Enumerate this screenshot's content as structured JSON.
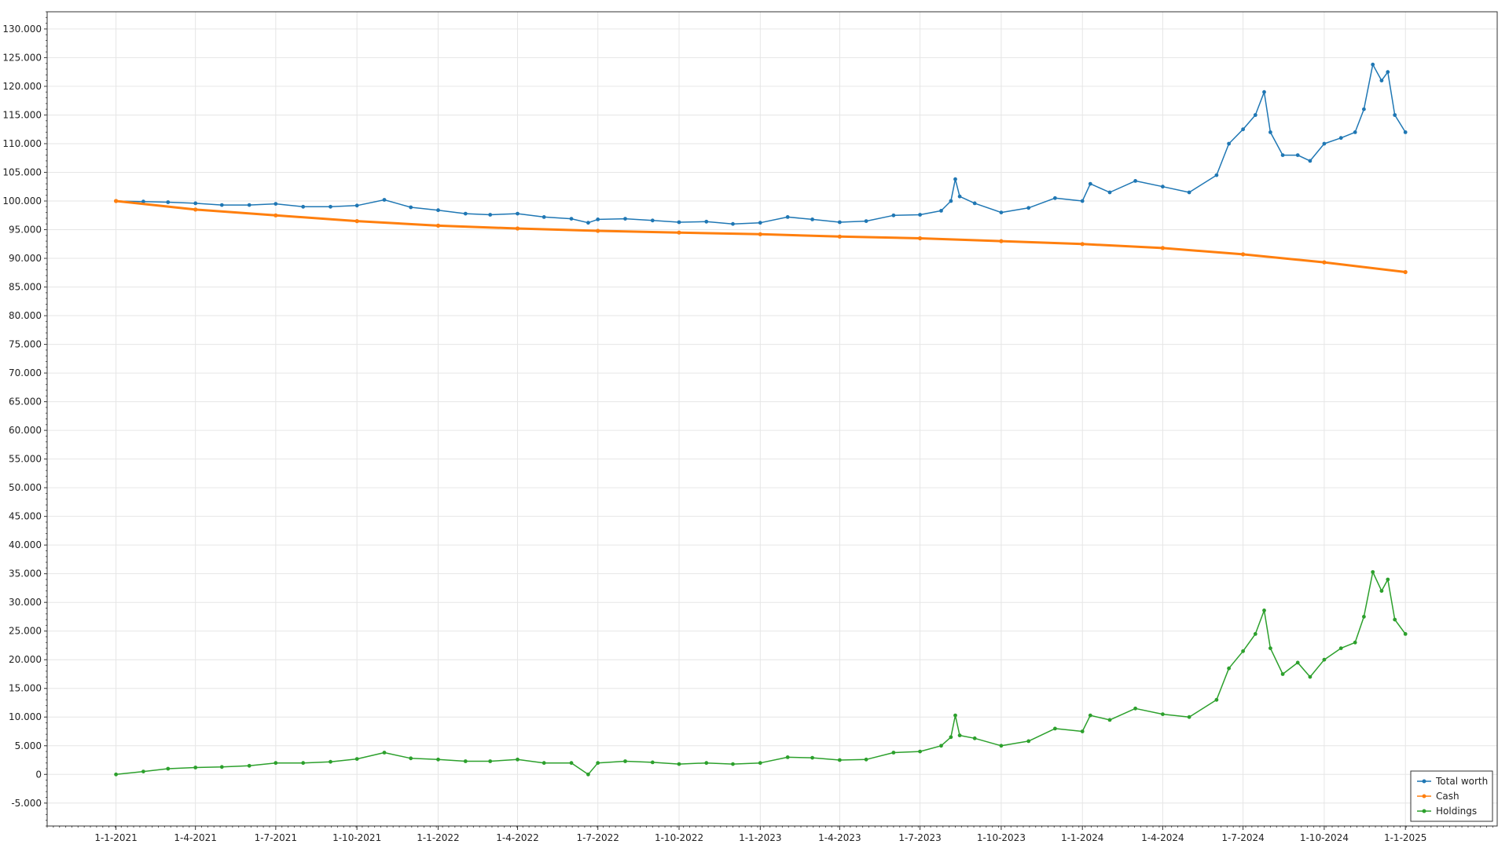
{
  "chart_data": {
    "type": "line",
    "title": "",
    "xlabel": "",
    "ylabel": "",
    "grid": true,
    "legend_position": "bottom-right",
    "x_axis": {
      "type": "date",
      "min": "2020-10-15",
      "max": "2025-04-15",
      "ticks": [
        {
          "date": "2021-01-01",
          "label": "1-1-2021"
        },
        {
          "date": "2021-04-01",
          "label": "1-4-2021"
        },
        {
          "date": "2021-07-01",
          "label": "1-7-2021"
        },
        {
          "date": "2021-10-01",
          "label": "1-10-2021"
        },
        {
          "date": "2022-01-01",
          "label": "1-1-2022"
        },
        {
          "date": "2022-04-01",
          "label": "1-4-2022"
        },
        {
          "date": "2022-07-01",
          "label": "1-7-2022"
        },
        {
          "date": "2022-10-01",
          "label": "1-10-2022"
        },
        {
          "date": "2023-01-01",
          "label": "1-1-2023"
        },
        {
          "date": "2023-04-01",
          "label": "1-4-2023"
        },
        {
          "date": "2023-07-01",
          "label": "1-7-2023"
        },
        {
          "date": "2023-10-01",
          "label": "1-10-2023"
        },
        {
          "date": "2024-01-01",
          "label": "1-1-2024"
        },
        {
          "date": "2024-04-01",
          "label": "1-4-2024"
        },
        {
          "date": "2024-07-01",
          "label": "1-7-2024"
        },
        {
          "date": "2024-10-01",
          "label": "1-10-2024"
        },
        {
          "date": "2025-01-01",
          "label": "1-1-2025"
        }
      ]
    },
    "y_axis": {
      "min": -9000,
      "max": 133000,
      "ticks": [
        {
          "value": -5000,
          "label": "-5.000"
        },
        {
          "value": 0,
          "label": "0"
        },
        {
          "value": 5000,
          "label": "5.000"
        },
        {
          "value": 10000,
          "label": "10.000"
        },
        {
          "value": 15000,
          "label": "15.000"
        },
        {
          "value": 20000,
          "label": "20.000"
        },
        {
          "value": 25000,
          "label": "25.000"
        },
        {
          "value": 30000,
          "label": "30.000"
        },
        {
          "value": 35000,
          "label": "35.000"
        },
        {
          "value": 40000,
          "label": "40.000"
        },
        {
          "value": 45000,
          "label": "45.000"
        },
        {
          "value": 50000,
          "label": "50.000"
        },
        {
          "value": 55000,
          "label": "55.000"
        },
        {
          "value": 60000,
          "label": "60.000"
        },
        {
          "value": 65000,
          "label": "65.000"
        },
        {
          "value": 70000,
          "label": "70.000"
        },
        {
          "value": 75000,
          "label": "75.000"
        },
        {
          "value": 80000,
          "label": "80.000"
        },
        {
          "value": 85000,
          "label": "85.000"
        },
        {
          "value": 90000,
          "label": "90.000"
        },
        {
          "value": 95000,
          "label": "95.000"
        },
        {
          "value": 100000,
          "label": "100.000"
        },
        {
          "value": 105000,
          "label": "105.000"
        },
        {
          "value": 110000,
          "label": "110.000"
        },
        {
          "value": 115000,
          "label": "115.000"
        },
        {
          "value": 120000,
          "label": "120.000"
        },
        {
          "value": 125000,
          "label": "125.000"
        },
        {
          "value": 130000,
          "label": "130.000"
        }
      ]
    },
    "series": [
      {
        "name": "Total worth",
        "color": "#1f77b4",
        "points": [
          [
            "2021-01-01",
            100000
          ],
          [
            "2021-02-01",
            99900
          ],
          [
            "2021-03-01",
            99800
          ],
          [
            "2021-04-01",
            99600
          ],
          [
            "2021-05-01",
            99300
          ],
          [
            "2021-06-01",
            99300
          ],
          [
            "2021-07-01",
            99500
          ],
          [
            "2021-08-01",
            99000
          ],
          [
            "2021-09-01",
            99000
          ],
          [
            "2021-10-01",
            99200
          ],
          [
            "2021-11-01",
            100200
          ],
          [
            "2021-12-01",
            98900
          ],
          [
            "2022-01-01",
            98400
          ],
          [
            "2022-02-01",
            97800
          ],
          [
            "2022-03-01",
            97600
          ],
          [
            "2022-04-01",
            97800
          ],
          [
            "2022-05-01",
            97200
          ],
          [
            "2022-06-01",
            96900
          ],
          [
            "2022-06-20",
            96200
          ],
          [
            "2022-07-01",
            96800
          ],
          [
            "2022-08-01",
            96900
          ],
          [
            "2022-09-01",
            96600
          ],
          [
            "2022-10-01",
            96300
          ],
          [
            "2022-11-01",
            96400
          ],
          [
            "2022-12-01",
            96000
          ],
          [
            "2023-01-01",
            96200
          ],
          [
            "2023-02-01",
            97200
          ],
          [
            "2023-03-01",
            96800
          ],
          [
            "2023-04-01",
            96300
          ],
          [
            "2023-05-01",
            96500
          ],
          [
            "2023-06-01",
            97500
          ],
          [
            "2023-07-01",
            97600
          ],
          [
            "2023-07-25",
            98300
          ],
          [
            "2023-08-05",
            100000
          ],
          [
            "2023-08-10",
            103800
          ],
          [
            "2023-08-15",
            100800
          ],
          [
            "2023-09-01",
            99600
          ],
          [
            "2023-10-01",
            98000
          ],
          [
            "2023-11-01",
            98800
          ],
          [
            "2023-12-01",
            100500
          ],
          [
            "2024-01-01",
            100000
          ],
          [
            "2024-01-10",
            103000
          ],
          [
            "2024-02-01",
            101500
          ],
          [
            "2024-03-01",
            103500
          ],
          [
            "2024-04-01",
            102500
          ],
          [
            "2024-05-01",
            101500
          ],
          [
            "2024-06-01",
            104500
          ],
          [
            "2024-06-15",
            110000
          ],
          [
            "2024-07-01",
            112500
          ],
          [
            "2024-07-15",
            115000
          ],
          [
            "2024-07-25",
            119000
          ],
          [
            "2024-08-01",
            112000
          ],
          [
            "2024-08-15",
            108000
          ],
          [
            "2024-09-01",
            108000
          ],
          [
            "2024-09-15",
            107000
          ],
          [
            "2024-10-01",
            110000
          ],
          [
            "2024-10-20",
            111000
          ],
          [
            "2024-11-05",
            112000
          ],
          [
            "2024-11-15",
            116000
          ],
          [
            "2024-11-25",
            123800
          ],
          [
            "2024-12-05",
            121000
          ],
          [
            "2024-12-12",
            122500
          ],
          [
            "2024-12-20",
            115000
          ],
          [
            "2025-01-01",
            112000
          ]
        ]
      },
      {
        "name": "Cash",
        "color": "#ff7f0e",
        "points": [
          [
            "2021-01-01",
            100000
          ],
          [
            "2021-04-01",
            98500
          ],
          [
            "2021-07-01",
            97500
          ],
          [
            "2021-10-01",
            96500
          ],
          [
            "2022-01-01",
            95700
          ],
          [
            "2022-04-01",
            95200
          ],
          [
            "2022-07-01",
            94800
          ],
          [
            "2022-10-01",
            94500
          ],
          [
            "2023-01-01",
            94200
          ],
          [
            "2023-04-01",
            93800
          ],
          [
            "2023-07-01",
            93500
          ],
          [
            "2023-10-01",
            93000
          ],
          [
            "2024-01-01",
            92500
          ],
          [
            "2024-04-01",
            91800
          ],
          [
            "2024-07-01",
            90700
          ],
          [
            "2024-10-01",
            89300
          ],
          [
            "2025-01-01",
            87600
          ]
        ]
      },
      {
        "name": "Holdings",
        "color": "#2ca02c",
        "points": [
          [
            "2021-01-01",
            0
          ],
          [
            "2021-02-01",
            500
          ],
          [
            "2021-03-01",
            1000
          ],
          [
            "2021-04-01",
            1200
          ],
          [
            "2021-05-01",
            1300
          ],
          [
            "2021-06-01",
            1500
          ],
          [
            "2021-07-01",
            2000
          ],
          [
            "2021-08-01",
            2000
          ],
          [
            "2021-09-01",
            2200
          ],
          [
            "2021-10-01",
            2700
          ],
          [
            "2021-11-01",
            3800
          ],
          [
            "2021-12-01",
            2800
          ],
          [
            "2022-01-01",
            2600
          ],
          [
            "2022-02-01",
            2300
          ],
          [
            "2022-03-01",
            2300
          ],
          [
            "2022-04-01",
            2600
          ],
          [
            "2022-05-01",
            2000
          ],
          [
            "2022-06-01",
            2000
          ],
          [
            "2022-06-20",
            0
          ],
          [
            "2022-07-01",
            2000
          ],
          [
            "2022-08-01",
            2300
          ],
          [
            "2022-09-01",
            2100
          ],
          [
            "2022-10-01",
            1800
          ],
          [
            "2022-11-01",
            2000
          ],
          [
            "2022-12-01",
            1800
          ],
          [
            "2023-01-01",
            2000
          ],
          [
            "2023-02-01",
            3000
          ],
          [
            "2023-03-01",
            2900
          ],
          [
            "2023-04-01",
            2500
          ],
          [
            "2023-05-01",
            2600
          ],
          [
            "2023-06-01",
            3800
          ],
          [
            "2023-07-01",
            4000
          ],
          [
            "2023-07-25",
            5000
          ],
          [
            "2023-08-05",
            6500
          ],
          [
            "2023-08-10",
            10300
          ],
          [
            "2023-08-15",
            6800
          ],
          [
            "2023-09-01",
            6300
          ],
          [
            "2023-10-01",
            5000
          ],
          [
            "2023-11-01",
            5800
          ],
          [
            "2023-12-01",
            8000
          ],
          [
            "2024-01-01",
            7500
          ],
          [
            "2024-01-10",
            10300
          ],
          [
            "2024-02-01",
            9500
          ],
          [
            "2024-03-01",
            11500
          ],
          [
            "2024-04-01",
            10500
          ],
          [
            "2024-05-01",
            10000
          ],
          [
            "2024-06-01",
            13000
          ],
          [
            "2024-06-15",
            18500
          ],
          [
            "2024-07-01",
            21500
          ],
          [
            "2024-07-15",
            24500
          ],
          [
            "2024-07-25",
            28600
          ],
          [
            "2024-08-01",
            22000
          ],
          [
            "2024-08-15",
            17500
          ],
          [
            "2024-09-01",
            19500
          ],
          [
            "2024-09-15",
            17000
          ],
          [
            "2024-10-01",
            20000
          ],
          [
            "2024-10-20",
            22000
          ],
          [
            "2024-11-05",
            23000
          ],
          [
            "2024-11-15",
            27500
          ],
          [
            "2024-11-25",
            35300
          ],
          [
            "2024-12-05",
            32000
          ],
          [
            "2024-12-12",
            34000
          ],
          [
            "2024-12-20",
            27000
          ],
          [
            "2025-01-01",
            24500
          ]
        ]
      }
    ]
  },
  "legend": {
    "items": [
      {
        "label": "Total worth",
        "color": "#1f77b4"
      },
      {
        "label": "Cash",
        "color": "#ff7f0e"
      },
      {
        "label": "Holdings",
        "color": "#2ca02c"
      }
    ]
  }
}
